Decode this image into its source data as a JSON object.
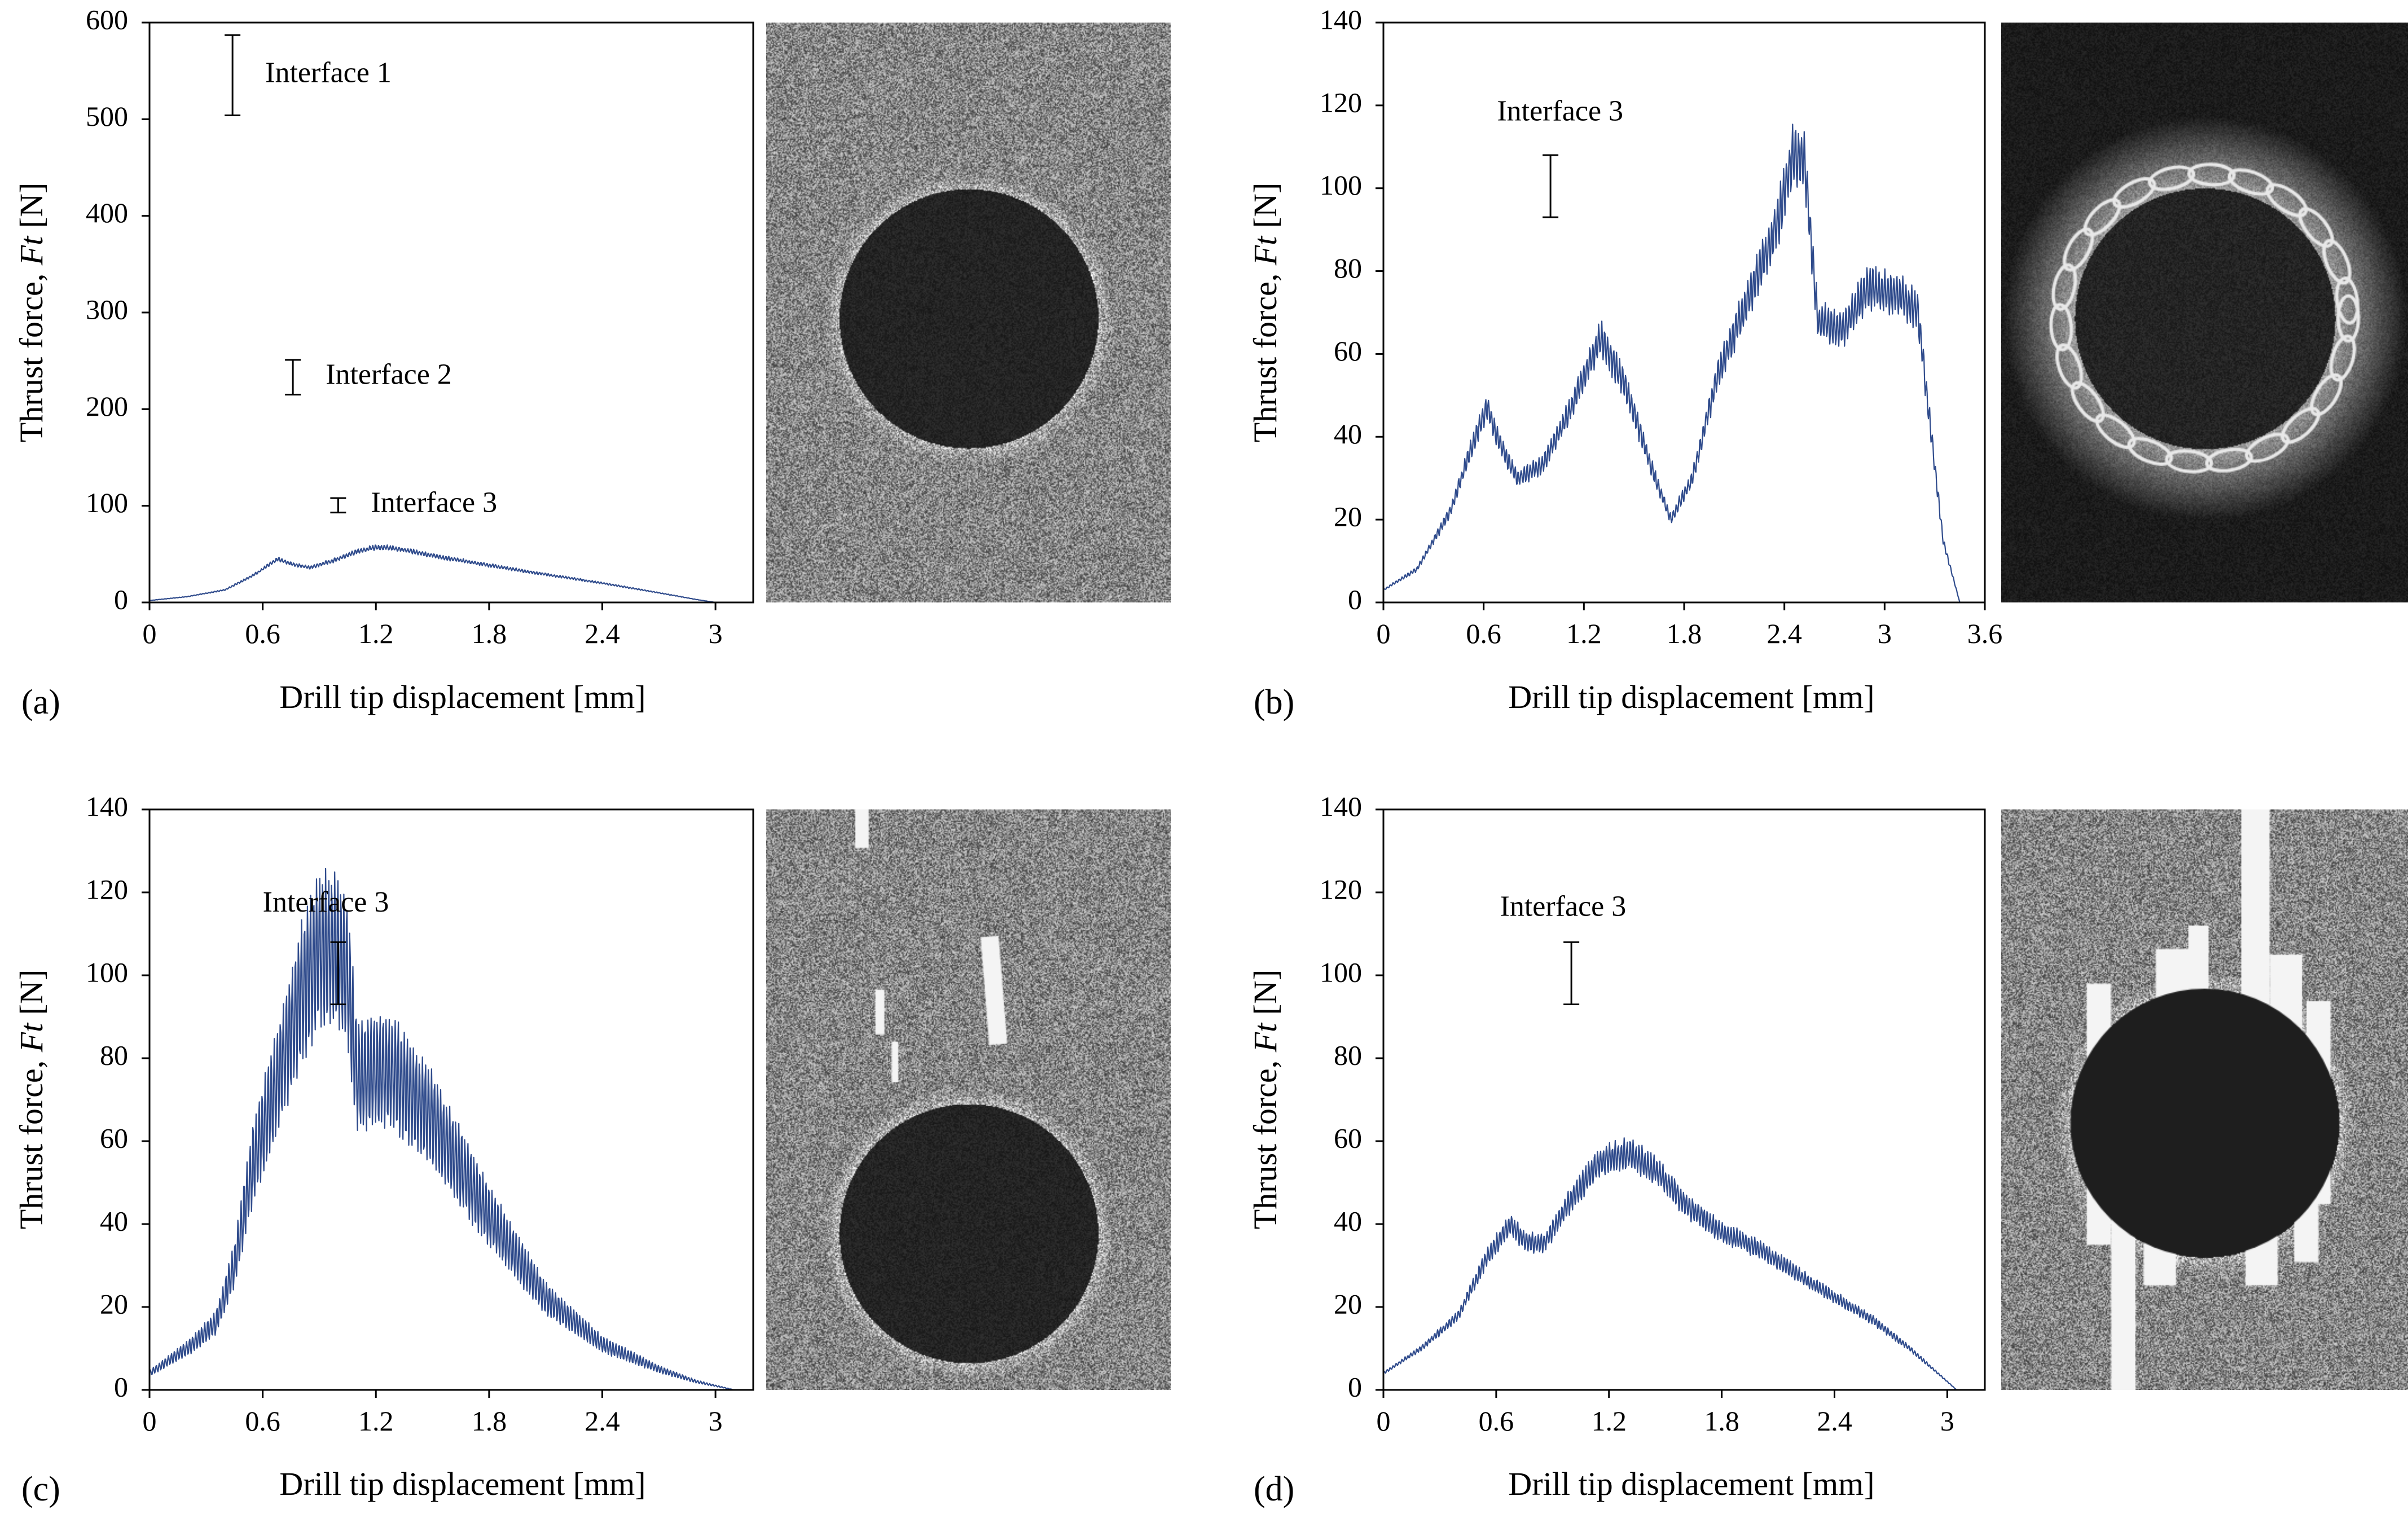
{
  "colors": {
    "line": "#2f4b8c",
    "axis": "#000000",
    "background": "#ffffff"
  },
  "chart_data": [
    {
      "panel_label": "(a)",
      "type": "line",
      "xlabel": "Drill tip displacement [mm]",
      "ylabel_prefix": "Thrust force, ",
      "ylabel_symbol": "Ft",
      "ylabel_unit": " [N]",
      "xlim": [
        0,
        3.2
      ],
      "ylim": [
        0,
        600
      ],
      "xticks": [
        0,
        0.6,
        1.2,
        1.8,
        2.4,
        3
      ],
      "xtick_labels": [
        "0",
        "0.6",
        "1.2",
        "1.8",
        "2.4",
        "3"
      ],
      "yticks": [
        0,
        100,
        200,
        300,
        400,
        500,
        600
      ],
      "ytick_labels": [
        "0",
        "100",
        "200",
        "300",
        "400",
        "500",
        "600"
      ],
      "error_bars": [
        {
          "label": "Interface 1",
          "x": 0.44,
          "low": 504,
          "high": 587
        },
        {
          "label": "Interface 2",
          "x": 0.76,
          "low": 215,
          "high": 251
        },
        {
          "label": "Interface 3",
          "x": 1.0,
          "low": 93,
          "high": 108
        }
      ],
      "series": [
        {
          "band": 0.08,
          "points": [
            [
              0,
              2
            ],
            [
              0.2,
              6
            ],
            [
              0.4,
              13
            ],
            [
              0.55,
              28
            ],
            [
              0.68,
              45
            ],
            [
              0.75,
              40
            ],
            [
              0.85,
              36
            ],
            [
              1.0,
              45
            ],
            [
              1.1,
              53
            ],
            [
              1.2,
              57
            ],
            [
              1.3,
              56
            ],
            [
              1.6,
              45
            ],
            [
              2.0,
              32
            ],
            [
              2.4,
              20
            ],
            [
              2.7,
              10
            ],
            [
              2.9,
              3
            ],
            [
              3.0,
              0
            ]
          ]
        }
      ],
      "image": "ct-hole-clean"
    },
    {
      "panel_label": "(b)",
      "type": "line",
      "xlabel": "Drill tip displacement [mm]",
      "ylabel_prefix": "Thrust force, ",
      "ylabel_symbol": "Ft",
      "ylabel_unit": " [N]",
      "xlim": [
        0,
        3.6
      ],
      "ylim": [
        0,
        140
      ],
      "xticks": [
        0,
        0.6,
        1.2,
        1.8,
        2.4,
        3,
        3.6
      ],
      "xtick_labels": [
        "0",
        "0.6",
        "1.2",
        "1.8",
        "2.4",
        "3",
        "3.6"
      ],
      "yticks": [
        0,
        20,
        40,
        60,
        80,
        100,
        120,
        140
      ],
      "ytick_labels": [
        "0",
        "20",
        "40",
        "60",
        "80",
        "100",
        "120",
        "140"
      ],
      "error_bars": [
        {
          "label": "Interface 3",
          "x": 1.0,
          "low": 93,
          "high": 108
        }
      ],
      "series": [
        {
          "band": 0.12,
          "points": [
            [
              0,
              3
            ],
            [
              0.2,
              8
            ],
            [
              0.4,
              22
            ],
            [
              0.55,
              40
            ],
            [
              0.62,
              47
            ],
            [
              0.7,
              38
            ],
            [
              0.8,
              30
            ],
            [
              0.95,
              33
            ],
            [
              1.1,
              45
            ],
            [
              1.3,
              64
            ],
            [
              1.45,
              52
            ],
            [
              1.6,
              33
            ],
            [
              1.72,
              20
            ],
            [
              1.85,
              30
            ],
            [
              2.0,
              55
            ],
            [
              2.2,
              75
            ],
            [
              2.35,
              90
            ],
            [
              2.45,
              108
            ],
            [
              2.52,
              107
            ],
            [
              2.6,
              68
            ],
            [
              2.75,
              66
            ],
            [
              2.9,
              76
            ],
            [
              3.1,
              74
            ],
            [
              3.2,
              70
            ],
            [
              3.28,
              40
            ],
            [
              3.35,
              15
            ],
            [
              3.45,
              0
            ]
          ]
        }
      ],
      "image": "ct-hole-delaminated"
    },
    {
      "panel_label": "(c)",
      "type": "line",
      "xlabel": "Drill tip displacement [mm]",
      "ylabel_prefix": "Thrust force, ",
      "ylabel_symbol": "Ft",
      "ylabel_unit": " [N]",
      "xlim": [
        0,
        3.2
      ],
      "ylim": [
        0,
        140
      ],
      "xticks": [
        0,
        0.6,
        1.2,
        1.8,
        2.4,
        3
      ],
      "xtick_labels": [
        "0",
        "0.6",
        "1.2",
        "1.8",
        "2.4",
        "3"
      ],
      "yticks": [
        0,
        20,
        40,
        60,
        80,
        100,
        120,
        140
      ],
      "ytick_labels": [
        "0",
        "20",
        "40",
        "60",
        "80",
        "100",
        "120",
        "140"
      ],
      "error_bars": [
        {
          "label": "Interface 3",
          "x": 1.0,
          "low": 93,
          "high": 108
        }
      ],
      "series": [
        {
          "band": 0.35,
          "points": [
            [
              0,
              4
            ],
            [
              0.2,
              10
            ],
            [
              0.35,
              16
            ],
            [
              0.45,
              30
            ],
            [
              0.55,
              55
            ],
            [
              0.7,
              78
            ],
            [
              0.8,
              95
            ],
            [
              0.9,
              106
            ],
            [
              1.0,
              106
            ],
            [
              1.05,
              100
            ],
            [
              1.1,
              75
            ],
            [
              1.2,
              77
            ],
            [
              1.3,
              76
            ],
            [
              1.5,
              65
            ],
            [
              1.8,
              42
            ],
            [
              2.1,
              22
            ],
            [
              2.4,
              11
            ],
            [
              2.7,
              5
            ],
            [
              2.9,
              2
            ],
            [
              3.1,
              0
            ]
          ]
        }
      ],
      "image": "ct-hole-fibres"
    },
    {
      "panel_label": "(d)",
      "type": "line",
      "xlabel": "Drill tip displacement [mm]",
      "ylabel_prefix": "Thrust force, ",
      "ylabel_symbol": "Ft",
      "ylabel_unit": " [N]",
      "xlim": [
        0,
        3.2
      ],
      "ylim": [
        0,
        140
      ],
      "xticks": [
        0,
        0.6,
        1.2,
        1.8,
        2.4,
        3
      ],
      "xtick_labels": [
        "0",
        "0.6",
        "1.2",
        "1.8",
        "2.4",
        "3"
      ],
      "yticks": [
        0,
        20,
        40,
        60,
        80,
        100,
        120,
        140
      ],
      "ytick_labels": [
        "0",
        "20",
        "40",
        "60",
        "80",
        "100",
        "120",
        "140"
      ],
      "error_bars": [
        {
          "label": "Interface 3",
          "x": 1.0,
          "low": 93,
          "high": 108
        }
      ],
      "series": [
        {
          "band": 0.12,
          "points": [
            [
              0,
              4
            ],
            [
              0.2,
              10
            ],
            [
              0.4,
              18
            ],
            [
              0.55,
              32
            ],
            [
              0.68,
              40
            ],
            [
              0.75,
              36
            ],
            [
              0.85,
              35
            ],
            [
              1.0,
              46
            ],
            [
              1.15,
              55
            ],
            [
              1.3,
              57
            ],
            [
              1.45,
              53
            ],
            [
              1.6,
              45
            ],
            [
              1.8,
              38
            ],
            [
              2.0,
              34
            ],
            [
              2.3,
              25
            ],
            [
              2.6,
              17
            ],
            [
              2.8,
              10
            ],
            [
              2.95,
              4
            ],
            [
              3.05,
              0
            ]
          ]
        }
      ],
      "image": "ct-hole-splintered"
    }
  ]
}
